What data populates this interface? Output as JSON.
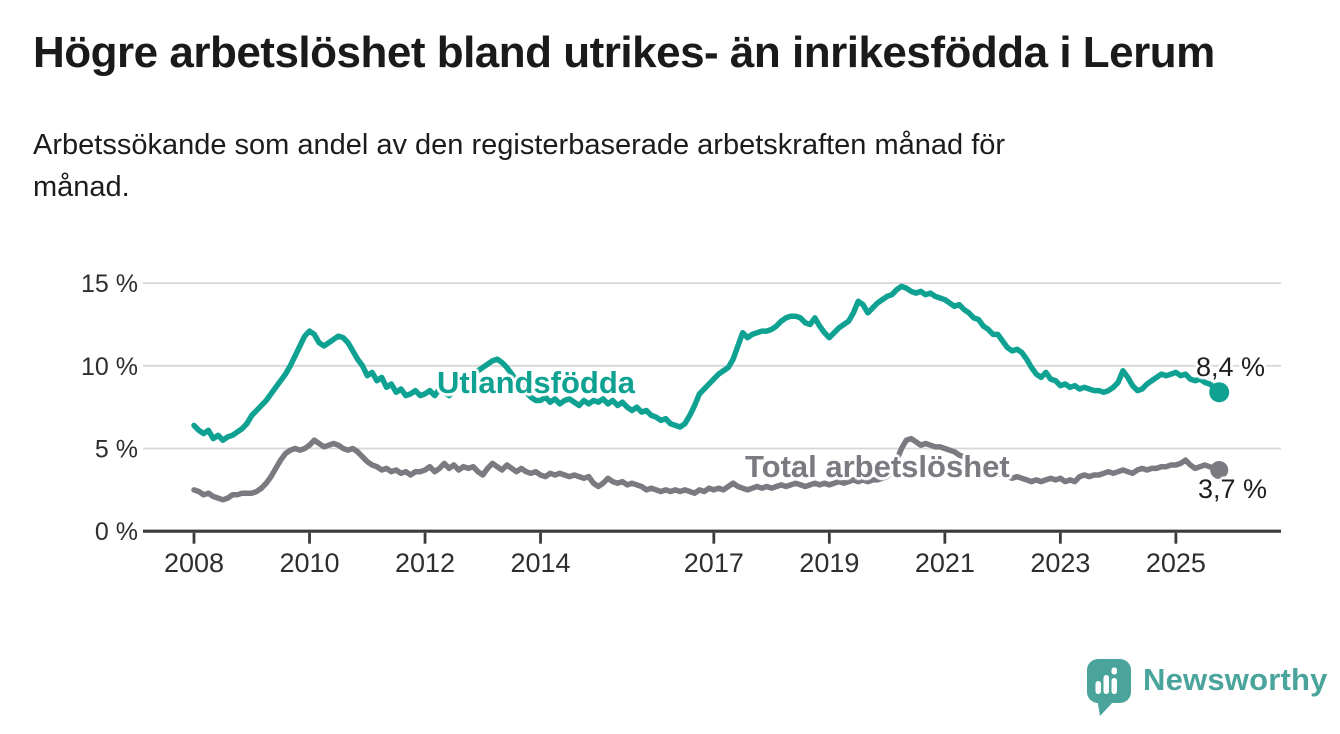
{
  "header": {
    "title": "Högre arbetslöshet bland utrikes- än inrikesfödda i Lerum",
    "subtitle": "Arbetssökande som andel av den registerbaserade arbetskraften månad för månad.",
    "subtitle_lines": [
      "Arbetssökande som andel av den registerbaserade arbetskraften månad för",
      "månad."
    ]
  },
  "chart_data": {
    "type": "line",
    "x_unit": "month",
    "x_start": "2008-01",
    "x_end": "2025-10",
    "ylim": [
      0,
      15.5
    ],
    "grid": true,
    "legend_position": "inline-labels",
    "grid_color": "#d8d8d8",
    "axis_color": "#3a3a3a",
    "tick_label_color": "#2e2e2e",
    "y_axis": {
      "ticks": [
        {
          "value": 0,
          "label": "0 %"
        },
        {
          "value": 5,
          "label": "5 %"
        },
        {
          "value": 10,
          "label": "10 %"
        },
        {
          "value": 15,
          "label": "15 %"
        }
      ]
    },
    "x_axis": {
      "ticks": [
        {
          "year": 2008,
          "label": "2008"
        },
        {
          "year": 2010,
          "label": "2010"
        },
        {
          "year": 2012,
          "label": "2012"
        },
        {
          "year": 2014,
          "label": "2014"
        },
        {
          "year": 2017,
          "label": "2017"
        },
        {
          "year": 2019,
          "label": "2019"
        },
        {
          "year": 2021,
          "label": "2021"
        },
        {
          "year": 2023,
          "label": "2023"
        },
        {
          "year": 2025,
          "label": "2025"
        }
      ]
    },
    "series": [
      {
        "name": "Utlandsfödda",
        "color": "#0fa292",
        "end_label": "8,4 %",
        "end_value": 8.4,
        "values": [
          6.4,
          6.1,
          5.9,
          6.1,
          5.6,
          5.8,
          5.5,
          5.7,
          5.8,
          6.0,
          6.2,
          6.5,
          7.0,
          7.3,
          7.6,
          7.9,
          8.3,
          8.7,
          9.1,
          9.5,
          10.0,
          10.6,
          11.2,
          11.8,
          12.1,
          11.9,
          11.4,
          11.2,
          11.4,
          11.6,
          11.8,
          11.7,
          11.4,
          10.9,
          10.4,
          10.0,
          9.4,
          9.6,
          9.1,
          9.3,
          8.7,
          8.9,
          8.4,
          8.6,
          8.2,
          8.3,
          8.5,
          8.2,
          8.3,
          8.5,
          8.2,
          8.6,
          8.4,
          8.2,
          8.5,
          8.7,
          8.9,
          9.2,
          9.5,
          9.7,
          9.9,
          10.1,
          10.3,
          10.4,
          10.2,
          9.9,
          9.5,
          9.1,
          8.7,
          8.4,
          8.1,
          7.9,
          7.9,
          8.1,
          7.8,
          8.0,
          7.7,
          7.9,
          8.0,
          7.8,
          7.6,
          7.9,
          7.7,
          7.9,
          7.8,
          8.0,
          7.7,
          7.9,
          7.6,
          7.8,
          7.5,
          7.3,
          7.5,
          7.2,
          7.3,
          7.0,
          6.9,
          6.7,
          6.8,
          6.5,
          6.4,
          6.3,
          6.5,
          7.0,
          7.6,
          8.3,
          8.6,
          8.9,
          9.2,
          9.5,
          9.7,
          9.9,
          10.4,
          11.2,
          12.0,
          11.7,
          11.9,
          12.0,
          12.1,
          12.1,
          12.2,
          12.4,
          12.7,
          12.9,
          13.0,
          13.0,
          12.9,
          12.6,
          12.5,
          12.9,
          12.4,
          12.0,
          11.7,
          12.0,
          12.3,
          12.5,
          12.7,
          13.2,
          13.9,
          13.7,
          13.2,
          13.5,
          13.8,
          14.0,
          14.2,
          14.3,
          14.6,
          14.8,
          14.7,
          14.5,
          14.4,
          14.5,
          14.3,
          14.4,
          14.2,
          14.1,
          14.0,
          13.8,
          13.6,
          13.7,
          13.4,
          13.2,
          12.9,
          12.8,
          12.4,
          12.2,
          11.9,
          11.9,
          11.5,
          11.1,
          10.9,
          11.0,
          10.8,
          10.4,
          9.9,
          9.5,
          9.3,
          9.6,
          9.2,
          9.1,
          8.8,
          8.9,
          8.7,
          8.8,
          8.6,
          8.7,
          8.6,
          8.5,
          8.5,
          8.4,
          8.5,
          8.7,
          9.0,
          9.7,
          9.3,
          8.8,
          8.5,
          8.6,
          8.9,
          9.1,
          9.3,
          9.5,
          9.4,
          9.5,
          9.6,
          9.4,
          9.5,
          9.2,
          9.1,
          9.2,
          9.0,
          8.9,
          8.7,
          8.4
        ]
      },
      {
        "name": "Total arbetslöshet",
        "color": "#7a7a80",
        "end_label": "3,7 %",
        "end_value": 3.7,
        "values": [
          2.5,
          2.4,
          2.2,
          2.3,
          2.1,
          2.0,
          1.9,
          2.0,
          2.2,
          2.2,
          2.3,
          2.3,
          2.3,
          2.4,
          2.6,
          2.9,
          3.3,
          3.8,
          4.3,
          4.7,
          4.9,
          5.0,
          4.9,
          5.0,
          5.2,
          5.5,
          5.3,
          5.1,
          5.2,
          5.3,
          5.2,
          5.0,
          4.9,
          5.0,
          4.8,
          4.5,
          4.2,
          4.0,
          3.9,
          3.7,
          3.8,
          3.6,
          3.7,
          3.5,
          3.6,
          3.4,
          3.6,
          3.6,
          3.7,
          3.9,
          3.6,
          3.8,
          4.1,
          3.8,
          4.0,
          3.7,
          3.9,
          3.8,
          3.9,
          3.6,
          3.4,
          3.8,
          4.1,
          3.9,
          3.7,
          4.0,
          3.8,
          3.6,
          3.8,
          3.6,
          3.5,
          3.6,
          3.4,
          3.3,
          3.5,
          3.4,
          3.5,
          3.4,
          3.3,
          3.4,
          3.3,
          3.2,
          3.3,
          2.9,
          2.7,
          2.9,
          3.2,
          3.0,
          2.9,
          3.0,
          2.8,
          2.9,
          2.8,
          2.7,
          2.5,
          2.6,
          2.5,
          2.4,
          2.5,
          2.4,
          2.5,
          2.4,
          2.5,
          2.4,
          2.3,
          2.5,
          2.4,
          2.6,
          2.5,
          2.6,
          2.5,
          2.7,
          2.9,
          2.7,
          2.6,
          2.5,
          2.6,
          2.7,
          2.6,
          2.7,
          2.6,
          2.7,
          2.8,
          2.7,
          2.8,
          2.9,
          2.8,
          2.7,
          2.8,
          2.9,
          2.8,
          2.9,
          2.8,
          2.9,
          3.0,
          2.9,
          3.0,
          3.1,
          3.0,
          3.1,
          3.0,
          3.1,
          3.1,
          3.2,
          3.3,
          3.6,
          4.3,
          5.0,
          5.5,
          5.6,
          5.4,
          5.2,
          5.3,
          5.2,
          5.1,
          5.1,
          5.0,
          4.9,
          4.8,
          4.6,
          4.5,
          4.3,
          4.2,
          4.0,
          3.9,
          3.8,
          3.6,
          3.5,
          3.4,
          3.3,
          3.2,
          3.3,
          3.2,
          3.1,
          3.0,
          3.1,
          3.0,
          3.1,
          3.2,
          3.1,
          3.2,
          3.0,
          3.1,
          3.0,
          3.3,
          3.4,
          3.3,
          3.4,
          3.4,
          3.5,
          3.6,
          3.5,
          3.6,
          3.7,
          3.6,
          3.5,
          3.7,
          3.8,
          3.7,
          3.8,
          3.8,
          3.9,
          3.9,
          4.0,
          4.0,
          4.1,
          4.3,
          4.0,
          3.8,
          3.9,
          4.0,
          3.9,
          3.8,
          3.7
        ]
      }
    ]
  },
  "footer": {
    "brand": "Newsworthy",
    "brand_color": "#4aa49b"
  }
}
